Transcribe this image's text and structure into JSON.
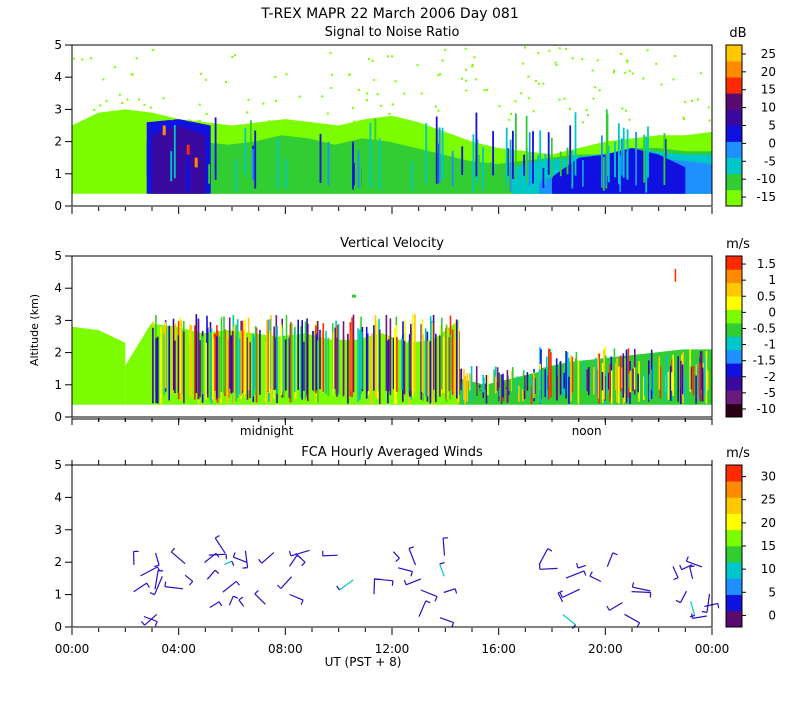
{
  "title": "T-REX  MAPR 22 March 2006 Day 081",
  "xlabel": "UT  (PST + 8)",
  "ylabel": "Altitude (km)",
  "time_ticks": [
    "00:00",
    "04:00",
    "08:00",
    "12:00",
    "16:00",
    "20:00",
    "00:00"
  ],
  "day_markers": [
    {
      "label": "midnight",
      "hour": 7.3
    },
    {
      "label": "noon",
      "hour": 19.3
    }
  ],
  "chart_data": [
    {
      "type": "heatmap",
      "title": "Signal to Noise Ratio",
      "ylim": [
        0,
        5
      ],
      "y_ticks": [
        0,
        1,
        2,
        3,
        4,
        5
      ],
      "xlim": [
        0,
        24
      ],
      "colorbar": {
        "unit": "dB",
        "colors": [
          "#7cfc00",
          "#32cd32",
          "#00c8c8",
          "#1e90ff",
          "#1010e0",
          "#3a0aa0",
          "#5a0a6e",
          "#ff2a00",
          "#ff8c00",
          "#ffc800"
        ],
        "labels": [
          "-15",
          "-10",
          "-5",
          "0",
          "5",
          "10",
          "15",
          "20",
          "25"
        ]
      },
      "layers": [
        {
          "t0": 0.0,
          "t1": 24,
          "top": [
            2.5,
            2.9,
            3.0,
            2.9,
            2.7,
            2.6,
            2.5,
            2.6,
            2.7,
            2.6,
            2.5,
            2.7,
            2.8,
            2.6,
            2.3,
            2.0,
            1.8,
            1.7,
            1.6,
            1.8,
            2.0,
            2.1,
            2.2,
            2.2,
            2.3
          ],
          "color": "#7cfc00"
        },
        {
          "t0": 2.8,
          "t1": 24,
          "top": [
            2.0,
            2.2,
            2.0,
            1.9,
            2.0,
            2.2,
            2.1,
            1.9,
            2.1,
            2.0,
            1.8,
            1.6,
            1.4,
            1.3,
            1.4,
            1.5,
            1.6,
            1.6,
            1.8,
            1.8,
            1.7,
            1.7
          ],
          "color": "#32cd32"
        },
        {
          "t0": 16.5,
          "t1": 24,
          "top": [
            1.2,
            1.4,
            1.5,
            1.6,
            1.7,
            1.7,
            1.6,
            1.6
          ],
          "color": "#00c8c8"
        },
        {
          "t0": 17.5,
          "t1": 24,
          "top": [
            0.8,
            1.0,
            1.3,
            1.5,
            1.5,
            1.4,
            1.3
          ],
          "color": "#1e90ff"
        },
        {
          "t0": 18.0,
          "t1": 23.0,
          "top": [
            0.9,
            1.5,
            1.6,
            1.8,
            1.6,
            1.2
          ],
          "color": "#1010e0"
        },
        {
          "t0": 2.8,
          "t1": 5.2,
          "top": [
            2.6,
            2.7,
            2.5
          ],
          "color": "#1010e0"
        },
        {
          "t0": 3.0,
          "t1": 5.0,
          "top": [
            2.2,
            2.5,
            2.2
          ],
          "color": "#3a0aa0"
        }
      ],
      "spots": [
        {
          "t": 4.3,
          "h": 1.6,
          "color": "#ff2a00"
        },
        {
          "t": 4.6,
          "h": 1.2,
          "color": "#ff8c00"
        },
        {
          "t": 3.4,
          "h": 2.2,
          "color": "#ff8c00"
        }
      ]
    },
    {
      "type": "heatmap",
      "title": "Vertical Velocity",
      "ylim": [
        0,
        5
      ],
      "y_ticks": [
        0,
        1,
        2,
        3,
        4,
        5
      ],
      "xlim": [
        0,
        24
      ],
      "colorbar": {
        "unit": "m/s",
        "colors": [
          "#2a0018",
          "#6a1a7a",
          "#3a0aa0",
          "#1010e0",
          "#1e90ff",
          "#00c8c8",
          "#32cd32",
          "#7cfc00",
          "#ffff00",
          "#ffc800",
          "#ff8c00",
          "#ff2a00"
        ],
        "labels": [
          "-10",
          "-5",
          "-2",
          "-1.5",
          "-1",
          "-0.5",
          "0",
          "0.5",
          "1",
          "1.5"
        ]
      },
      "layers": [
        {
          "t0": 0.0,
          "t1": 2.0,
          "top": [
            2.8,
            2.7,
            2.3
          ],
          "color": "#7cfc00"
        },
        {
          "t0": 2.0,
          "t1": 14.5,
          "top": [
            1.6,
            2.9,
            2.8,
            2.6,
            2.7,
            2.6,
            2.5,
            2.6,
            2.4,
            2.4,
            2.6,
            2.3,
            2.4,
            3.0
          ],
          "color": "#7cfc00"
        },
        {
          "t0": 14.5,
          "t1": 17.5,
          "top": [
            1.2,
            1.0,
            1.2,
            1.4
          ],
          "color": "#32cd32"
        },
        {
          "t0": 17.5,
          "t1": 24.0,
          "top": [
            1.5,
            1.7,
            1.8,
            1.9,
            2.0,
            2.1,
            2.1
          ],
          "color": "#32cd32"
        }
      ],
      "speckle_colors": [
        "#ff2a00",
        "#ffc800",
        "#1010e0",
        "#3a0aa0",
        "#ffff00",
        "#32cd32",
        "#00c8c8",
        "#6a1a7a"
      ]
    },
    {
      "type": "scatter",
      "title": "FCA Hourly Averaged Winds",
      "ylim": [
        0,
        5
      ],
      "y_ticks": [
        0,
        1,
        2,
        3,
        4,
        5
      ],
      "xlim": [
        0,
        24
      ],
      "colorbar": {
        "unit": "m/s",
        "colors": [
          "#5a0a6e",
          "#1010e0",
          "#1e90ff",
          "#00c8c8",
          "#32cd32",
          "#7cfc00",
          "#ffff00",
          "#ffc800",
          "#ff8c00",
          "#ff2a00"
        ],
        "labels": [
          "0",
          "5",
          "10",
          "15",
          "20",
          "25",
          "30"
        ]
      },
      "hours": [
        2.5,
        3.3,
        4.2,
        5.0,
        5.8,
        6.6,
        7.4,
        8.2,
        9.0,
        9.8,
        10.6,
        11.4,
        12.2,
        13.0,
        13.8,
        17.6,
        18.4,
        19.2,
        20.0,
        20.8,
        21.6,
        22.4,
        23.2,
        23.8
      ],
      "levels": [
        0.3,
        0.7,
        1.1,
        1.5,
        1.9,
        2.3
      ]
    }
  ]
}
